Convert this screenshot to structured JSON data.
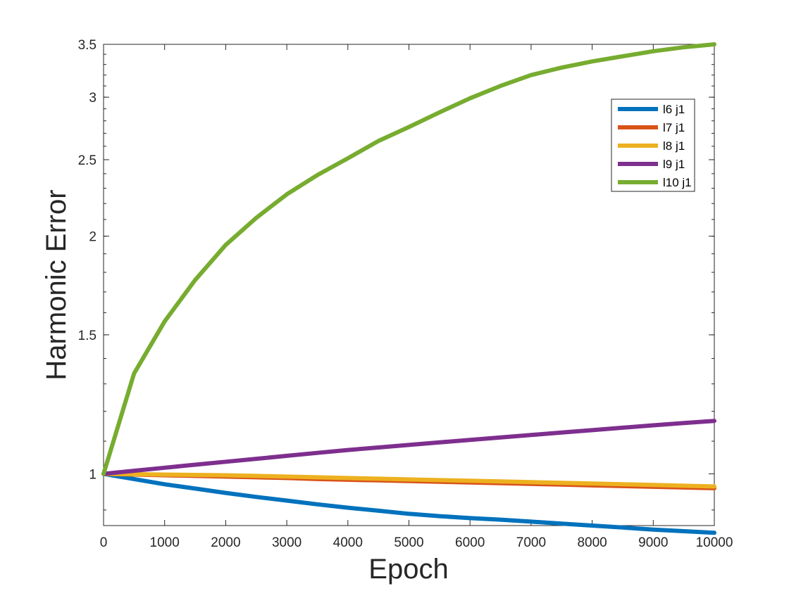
{
  "chart_data": {
    "type": "line",
    "title": "",
    "xlabel": "Epoch",
    "ylabel": "Harmonic Error",
    "xlim": [
      0,
      10000
    ],
    "ylim": [
      0.86,
      3.5
    ],
    "yscale": "log",
    "x_ticks": [
      0,
      1000,
      2000,
      3000,
      4000,
      5000,
      6000,
      7000,
      8000,
      9000,
      10000
    ],
    "x_tick_labels": [
      "0",
      "1000",
      "2000",
      "3000",
      "4000",
      "5000",
      "6000",
      "7000",
      "8000",
      "9000",
      "10000"
    ],
    "y_ticks": [
      1,
      1.5,
      2,
      2.5,
      3,
      3.5
    ],
    "y_tick_labels": [
      "1",
      "1.5",
      "2",
      "2.5",
      "3",
      "3.5"
    ],
    "grid": false,
    "legend_position": "top-right",
    "x": [
      0,
      500,
      1000,
      1500,
      2000,
      2500,
      3000,
      3500,
      4000,
      4500,
      5000,
      5500,
      6000,
      6500,
      7000,
      7500,
      8000,
      8500,
      9000,
      9500,
      10000
    ],
    "series": [
      {
        "name": "l6 j1",
        "color": "#0072BD",
        "values": [
          1.0,
          0.985,
          0.97,
          0.958,
          0.946,
          0.935,
          0.925,
          0.915,
          0.906,
          0.898,
          0.89,
          0.884,
          0.879,
          0.875,
          0.87,
          0.865,
          0.86,
          0.855,
          0.85,
          0.846,
          0.842
        ]
      },
      {
        "name": "l7 j1",
        "color": "#D95319",
        "values": [
          1.0,
          0.998,
          0.996,
          0.994,
          0.992,
          0.99,
          0.988,
          0.985,
          0.983,
          0.981,
          0.979,
          0.977,
          0.975,
          0.973,
          0.971,
          0.969,
          0.967,
          0.965,
          0.963,
          0.961,
          0.959
        ]
      },
      {
        "name": "l8 j1",
        "color": "#EDB120",
        "values": [
          1.0,
          0.999,
          0.998,
          0.997,
          0.996,
          0.994,
          0.992,
          0.99,
          0.988,
          0.986,
          0.984,
          0.982,
          0.98,
          0.978,
          0.976,
          0.974,
          0.972,
          0.97,
          0.968,
          0.966,
          0.964
        ]
      },
      {
        "name": "l9 j1",
        "color": "#7E2F8E",
        "values": [
          1.0,
          1.009,
          1.018,
          1.027,
          1.036,
          1.045,
          1.054,
          1.063,
          1.072,
          1.08,
          1.088,
          1.096,
          1.104,
          1.112,
          1.12,
          1.128,
          1.136,
          1.144,
          1.152,
          1.16,
          1.167
        ]
      },
      {
        "name": "l10 j1",
        "color": "#77AC30",
        "values": [
          1.0,
          1.34,
          1.56,
          1.76,
          1.95,
          2.11,
          2.26,
          2.39,
          2.51,
          2.64,
          2.75,
          2.87,
          2.99,
          3.1,
          3.2,
          3.27,
          3.33,
          3.38,
          3.43,
          3.47,
          3.5
        ]
      }
    ]
  }
}
